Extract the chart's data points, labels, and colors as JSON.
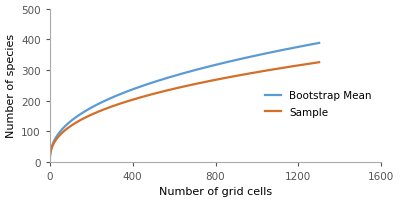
{
  "xlim": [
    0,
    1600
  ],
  "ylim": [
    0,
    500
  ],
  "xticks": [
    0,
    400,
    800,
    1200,
    1600
  ],
  "yticks": [
    0,
    100,
    200,
    300,
    400,
    500
  ],
  "xlabel": "Number of grid cells",
  "ylabel": "Number of species",
  "bootstrap_color": "#5B9BD5",
  "sample_color": "#D46E28",
  "bootstrap_label": "Bootstrap Mean",
  "sample_label": "Sample",
  "bg_color": "#ffffff",
  "linewidth": 1.6,
  "curve_max_x": 1300,
  "boot_A": 500,
  "boot_b": 0.42,
  "samp_A": 400,
  "samp_b": 0.4,
  "legend_fontsize": 7.5,
  "axis_fontsize": 8,
  "tick_fontsize": 7.5
}
